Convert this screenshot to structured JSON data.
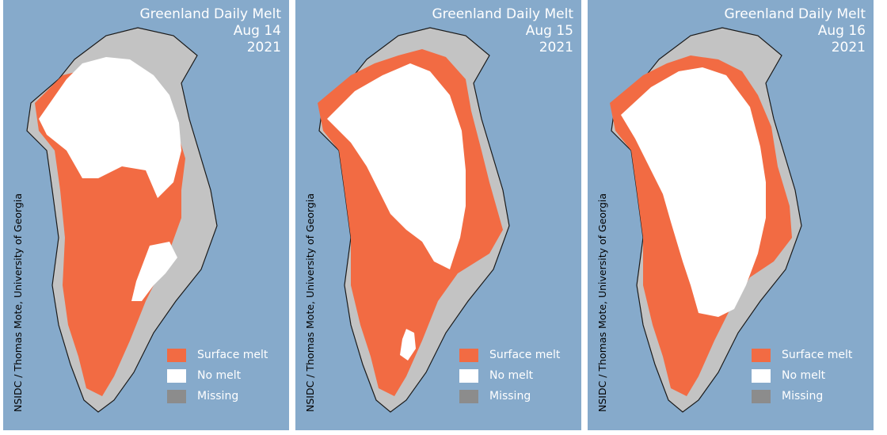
{
  "panels": [
    {
      "title": "Greenland Daily Melt",
      "date": "Aug 14",
      "year": "2021"
    },
    {
      "title": "Greenland Daily Melt",
      "date": "Aug 15",
      "year": "2021"
    },
    {
      "title": "Greenland Daily Melt",
      "date": "Aug 16",
      "year": "2021"
    }
  ],
  "credit": "NSIDC / Thomas Mote, University of Georgia",
  "legend": [
    {
      "label": "Surface melt",
      "color": "#f26b43"
    },
    {
      "label": "No melt",
      "color": "#ffffff"
    },
    {
      "label": "Missing",
      "color": "#8c8c8c"
    }
  ],
  "colors": {
    "ocean": "#86aacb",
    "land": "#c3c3c3",
    "coast": "#1a1a1a"
  }
}
